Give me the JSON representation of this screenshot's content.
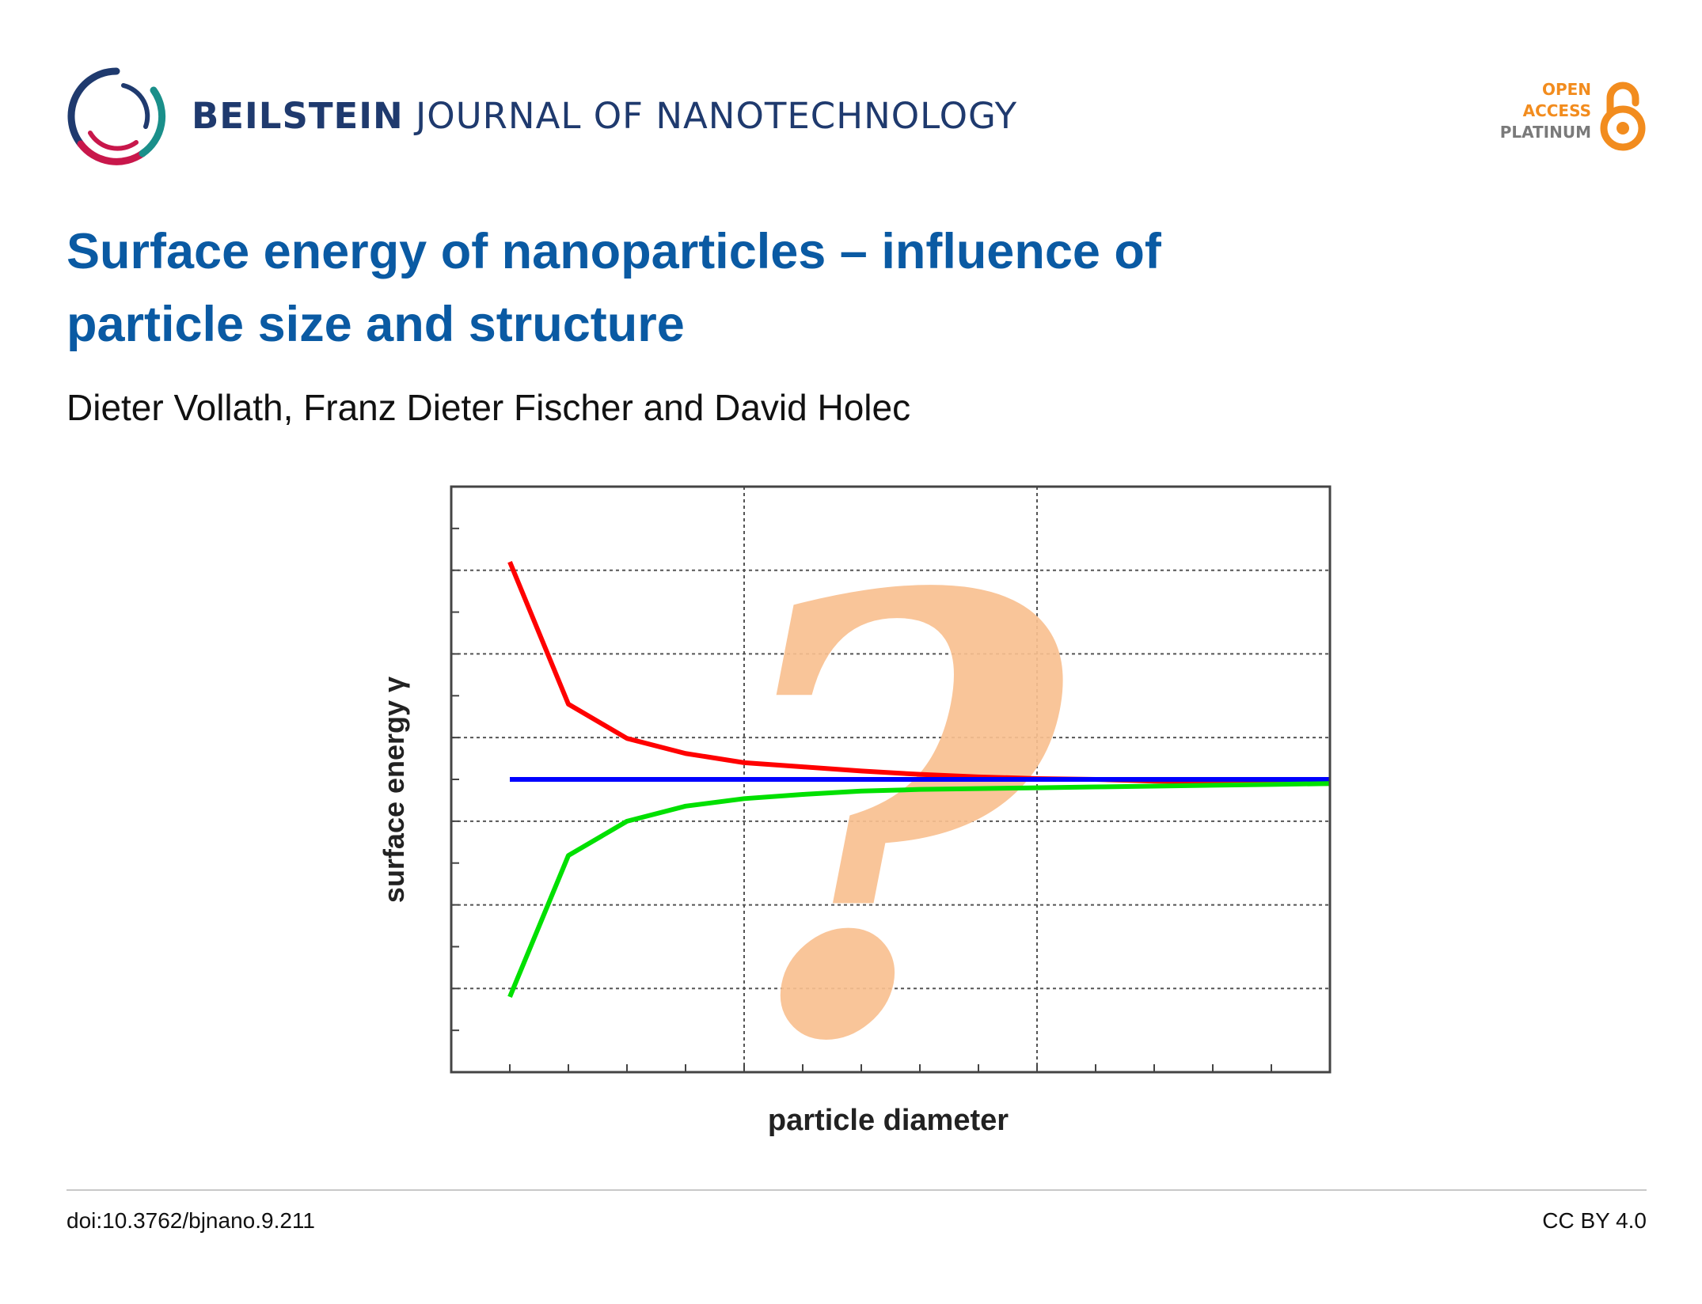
{
  "header": {
    "journal_bold": "BEILSTEIN",
    "journal_rest": "JOURNAL OF NANOTECHNOLOGY",
    "logo_icon": "beilstein-ring-logo",
    "open_access": {
      "line1": "OPEN",
      "line2": "ACCESS",
      "line3": "PLATINUM",
      "icon": "open-lock-icon",
      "accent_color": "#f28c1e"
    }
  },
  "article": {
    "title_line1": "Surface energy of nanoparticles – influence of",
    "title_line2": "particle size and structure",
    "authors": "Dieter Vollath, Franz Dieter Fischer and David Holec"
  },
  "chart_data": {
    "type": "line",
    "title": "",
    "xlabel": "particle diameter",
    "ylabel": "surface energy γ",
    "grid": true,
    "tick_labels_shown": false,
    "overlay_symbol": "?",
    "overlay_color": "#f8c090",
    "xlim": [
      0,
      15
    ],
    "ylim": [
      0,
      7
    ],
    "x": [
      1,
      2,
      3,
      4,
      5,
      6,
      7,
      8,
      9,
      10,
      11,
      12,
      13,
      14,
      15
    ],
    "series": [
      {
        "color": "#ff0000",
        "values": [
          6.1,
          4.4,
          3.99,
          3.81,
          3.7,
          3.65,
          3.6,
          3.56,
          3.53,
          3.51,
          3.5,
          3.48,
          3.47,
          3.46,
          3.45
        ]
      },
      {
        "color": "#0000ff",
        "values": [
          3.5,
          3.5,
          3.5,
          3.5,
          3.5,
          3.5,
          3.5,
          3.5,
          3.5,
          3.5,
          3.5,
          3.5,
          3.5,
          3.5,
          3.5
        ]
      },
      {
        "color": "#00e000",
        "values": [
          0.9,
          2.59,
          3.0,
          3.18,
          3.27,
          3.32,
          3.36,
          3.38,
          3.39,
          3.4,
          3.41,
          3.42,
          3.43,
          3.44,
          3.45
        ]
      }
    ]
  },
  "footer": {
    "doi": "doi:10.3762/bjnano.9.211",
    "license": "CC BY 4.0"
  }
}
